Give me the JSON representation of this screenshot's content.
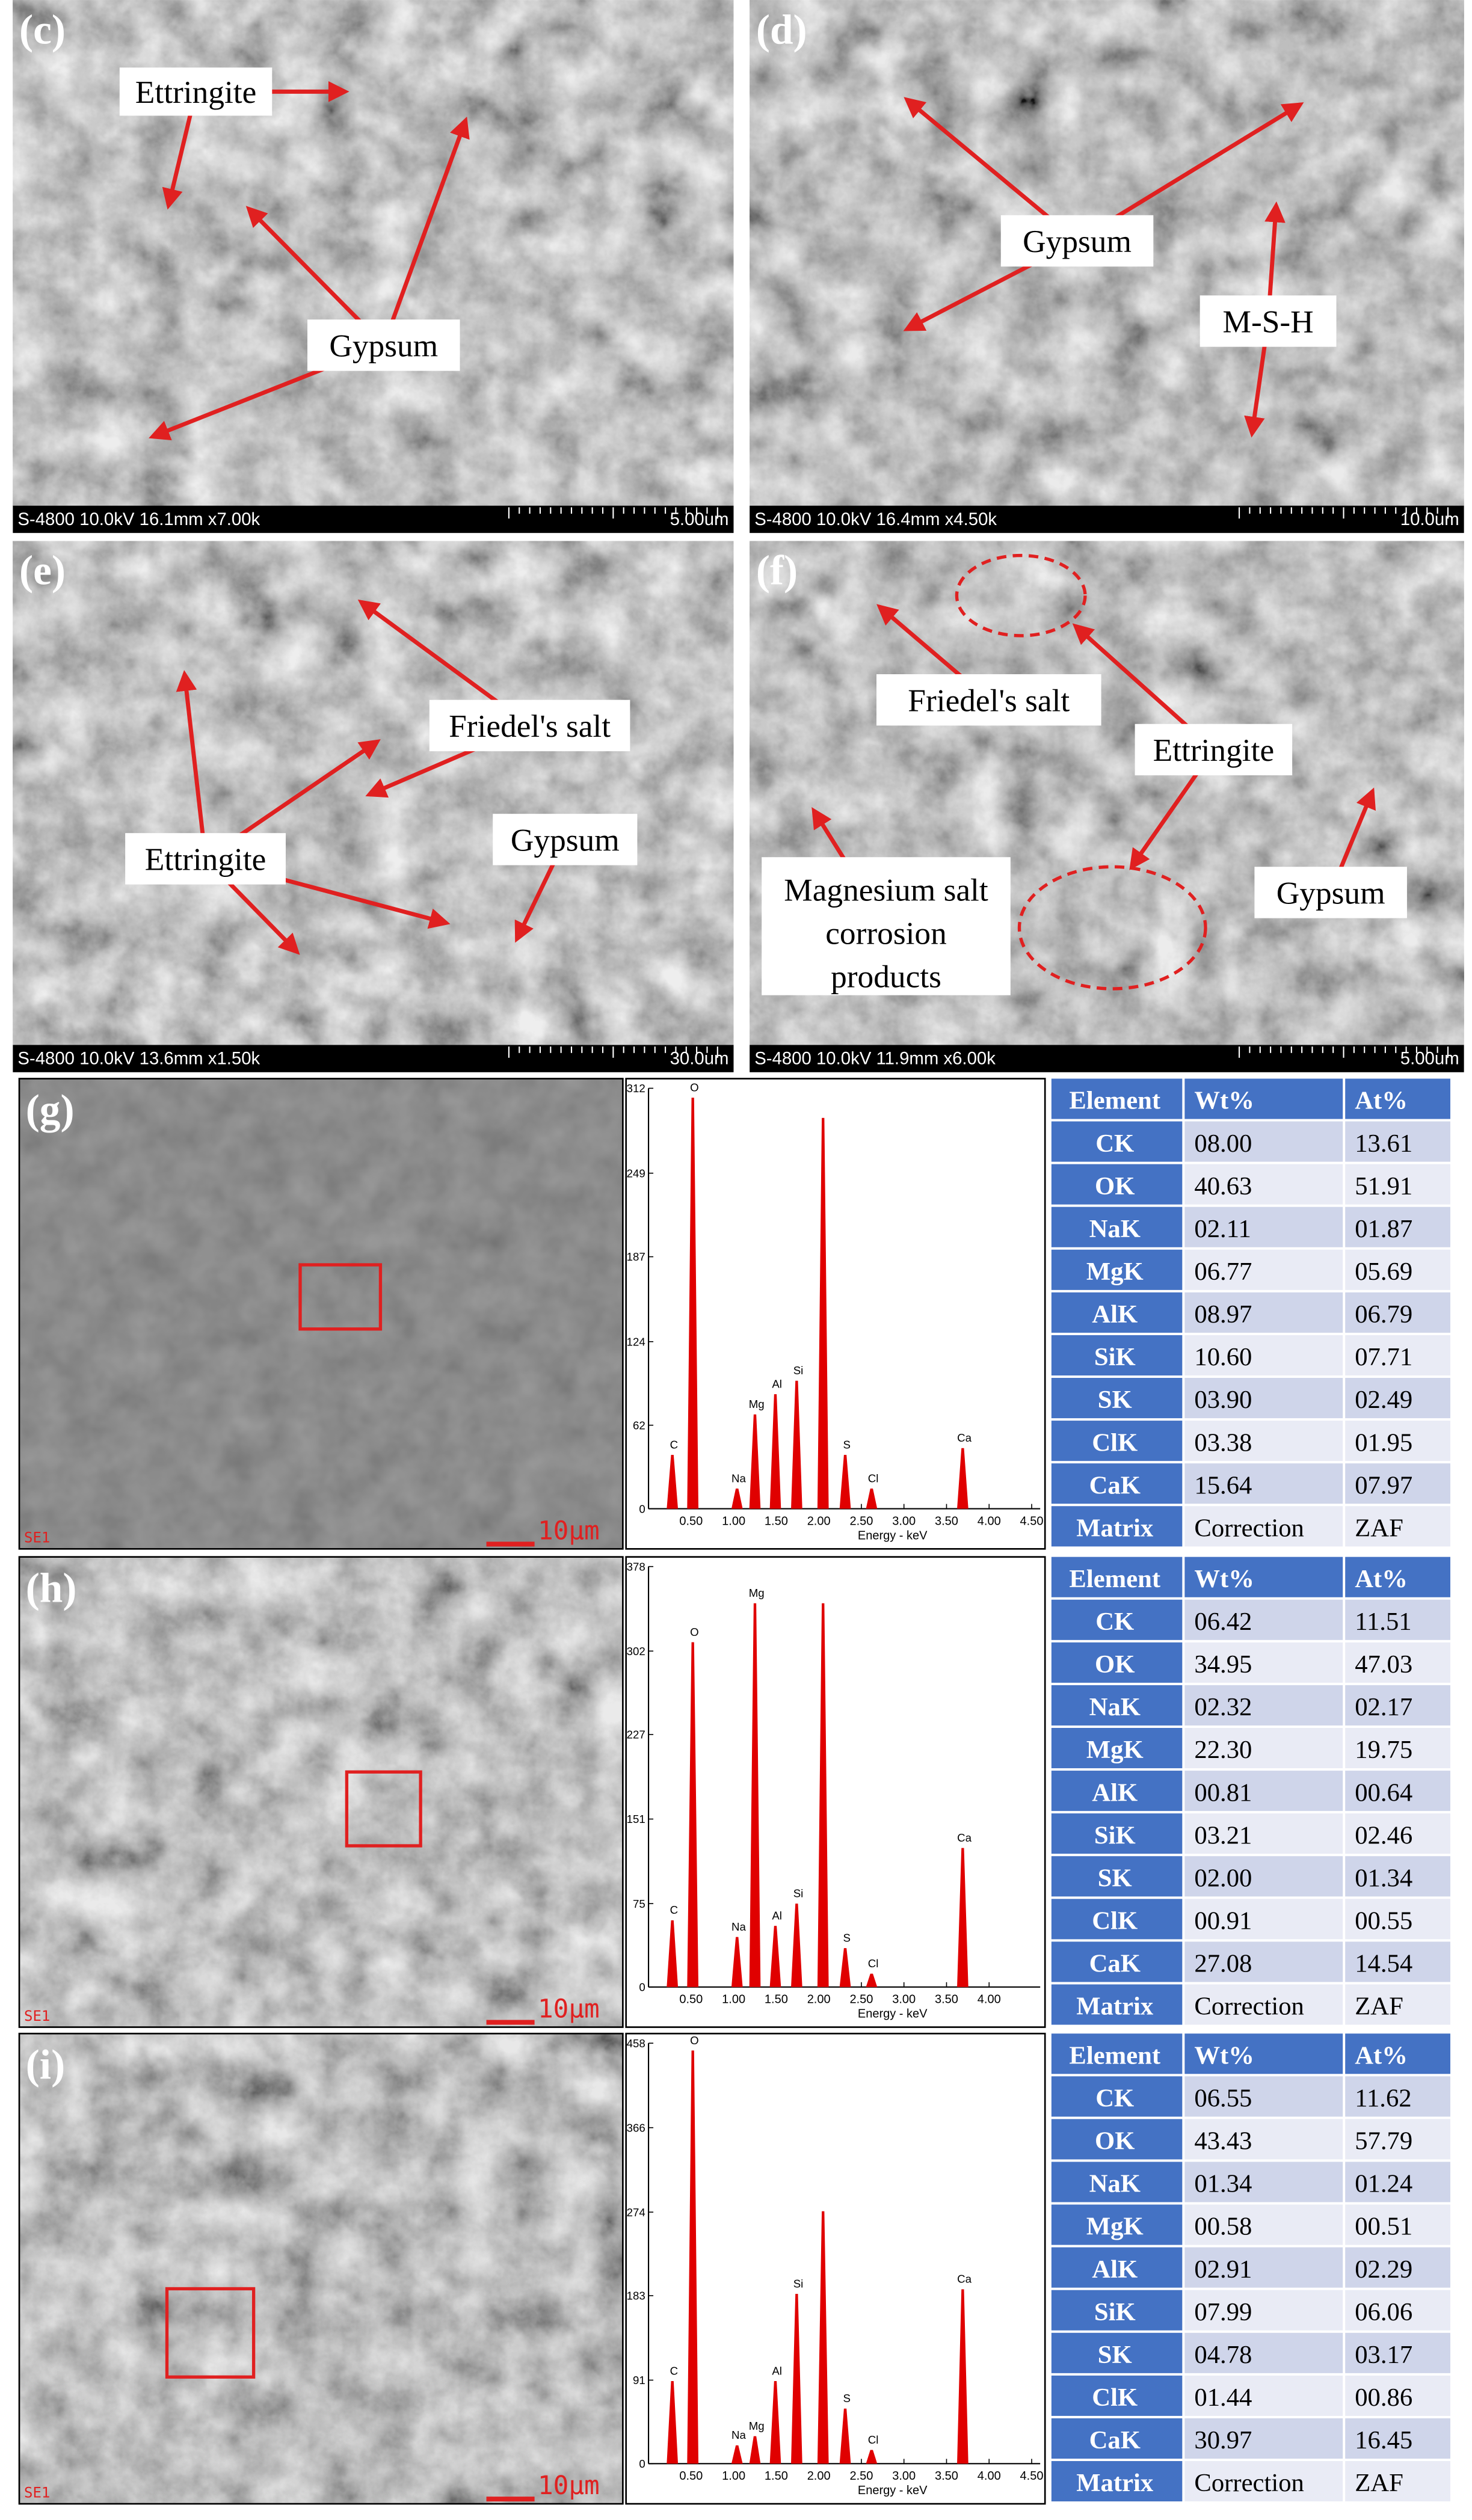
{
  "sem_panels": [
    {
      "label": "(c)",
      "info": "S-4800 10.0kV 16.1mm x7.00k",
      "scale": "5.00um",
      "annotations": [
        {
          "text": "Ettringite"
        },
        {
          "text": "Gypsum"
        }
      ]
    },
    {
      "label": "(d)",
      "info": "S-4800 10.0kV 16.4mm x4.50k",
      "scale": "10.0um",
      "annotations": [
        {
          "text": "Gypsum"
        },
        {
          "text": "M-S-H"
        }
      ]
    },
    {
      "label": "(e)",
      "info": "S-4800 10.0kV 13.6mm x1.50k",
      "scale": "30.0um",
      "annotations": [
        {
          "text": "Friedel's salt"
        },
        {
          "text": "Ettringite"
        },
        {
          "text": "Gypsum"
        }
      ]
    },
    {
      "label": "(f)",
      "info": "S-4800 10.0kV 11.9mm x6.00k",
      "scale": "5.00um",
      "annotations": [
        {
          "text": "Friedel's salt"
        },
        {
          "text": "Ettringite"
        },
        {
          "text": "Gypsum"
        },
        {
          "lines": [
            "Magnesium salt",
            "corrosion",
            "products"
          ]
        }
      ]
    }
  ],
  "eds_panels": [
    {
      "label": "(g)",
      "detector": "SE1",
      "scale": "10μm",
      "spectrum": {
        "type": "bar",
        "xlabel": "Energy - keV",
        "xlim": [
          0,
          4.6
        ],
        "ylim": [
          0,
          312
        ],
        "yticks": [
          0,
          62,
          124,
          187,
          249,
          312
        ],
        "xticks": [
          {
            "value": 0.5,
            "label": "0.50"
          },
          {
            "value": 1,
            "label": "1.00"
          },
          {
            "value": 1.5,
            "label": "1.50"
          },
          {
            "value": 2,
            "label": "2.00"
          },
          {
            "value": 2.5,
            "label": "2.50"
          },
          {
            "value": 3,
            "label": "3.00"
          },
          {
            "value": 3.5,
            "label": "3.50"
          },
          {
            "value": 4,
            "label": "4.00"
          },
          {
            "value": 4.5,
            "label": "4.50"
          }
        ],
        "color": "#e00000",
        "peaks": [
          {
            "element": "C",
            "energy": 0.28,
            "counts": 40
          },
          {
            "element": "O",
            "energy": 0.52,
            "counts": 305
          },
          {
            "element": "Na",
            "energy": 1.04,
            "counts": 15
          },
          {
            "element": "Mg",
            "energy": 1.25,
            "counts": 70
          },
          {
            "element": "Al",
            "energy": 1.49,
            "counts": 85
          },
          {
            "element": "Si",
            "energy": 1.74,
            "counts": 95
          },
          {
            "element": null,
            "energy": 2.05,
            "counts": 290
          },
          {
            "element": "S",
            "energy": 2.31,
            "counts": 40
          },
          {
            "element": "Cl",
            "energy": 2.62,
            "counts": 15
          },
          {
            "element": "Ca",
            "energy": 3.69,
            "counts": 45
          }
        ]
      },
      "table": {
        "header": [
          "Element",
          "Wt%",
          "At%"
        ],
        "rows": [
          [
            "CK",
            "08.00",
            "13.61"
          ],
          [
            "OK",
            "40.63",
            "51.91"
          ],
          [
            "NaK",
            "02.11",
            "01.87"
          ],
          [
            "MgK",
            "06.77",
            "05.69"
          ],
          [
            "AlK",
            "08.97",
            "06.79"
          ],
          [
            "SiK",
            "10.60",
            "07.71"
          ],
          [
            "SK",
            "03.90",
            "02.49"
          ],
          [
            "ClK",
            "03.38",
            "01.95"
          ],
          [
            "CaK",
            "15.64",
            "07.97"
          ],
          [
            "Matrix",
            "Correction",
            "ZAF"
          ]
        ]
      }
    },
    {
      "label": "(h)",
      "detector": "SE1",
      "scale": "10μm",
      "spectrum": {
        "type": "bar",
        "xlabel": "Energy - keV",
        "xlim": [
          0,
          4.6
        ],
        "ylim": [
          0,
          378
        ],
        "yticks": [
          0,
          75,
          151,
          227,
          302,
          378
        ],
        "xticks": [
          {
            "value": 0.5,
            "label": "0.50"
          },
          {
            "value": 1,
            "label": "1.00"
          },
          {
            "value": 1.5,
            "label": "1.50"
          },
          {
            "value": 2,
            "label": "2.00"
          },
          {
            "value": 2.5,
            "label": "2.50"
          },
          {
            "value": 3,
            "label": "3.00"
          },
          {
            "value": 3.5,
            "label": "3.50"
          },
          {
            "value": 4,
            "label": "4.00"
          }
        ],
        "color": "#e00000",
        "peaks": [
          {
            "element": "C",
            "energy": 0.28,
            "counts": 60
          },
          {
            "element": "O",
            "energy": 0.52,
            "counts": 310
          },
          {
            "element": "Na",
            "energy": 1.04,
            "counts": 45
          },
          {
            "element": "Mg",
            "energy": 1.25,
            "counts": 345
          },
          {
            "element": "Al",
            "energy": 1.49,
            "counts": 55
          },
          {
            "element": "Si",
            "energy": 1.74,
            "counts": 75
          },
          {
            "element": null,
            "energy": 2.05,
            "counts": 345
          },
          {
            "element": "S",
            "energy": 2.31,
            "counts": 35
          },
          {
            "element": "Cl",
            "energy": 2.62,
            "counts": 12
          },
          {
            "element": "Ca",
            "energy": 3.69,
            "counts": 125
          }
        ]
      },
      "table": {
        "header": [
          "Element",
          "Wt%",
          "At%"
        ],
        "rows": [
          [
            "CK",
            "06.42",
            "11.51"
          ],
          [
            "OK",
            "34.95",
            "47.03"
          ],
          [
            "NaK",
            "02.32",
            "02.17"
          ],
          [
            "MgK",
            "22.30",
            "19.75"
          ],
          [
            "AlK",
            "00.81",
            "00.64"
          ],
          [
            "SiK",
            "03.21",
            "02.46"
          ],
          [
            "SK",
            "02.00",
            "01.34"
          ],
          [
            "ClK",
            "00.91",
            "00.55"
          ],
          [
            "CaK",
            "27.08",
            "14.54"
          ],
          [
            "Matrix",
            "Correction",
            "ZAF"
          ]
        ]
      }
    },
    {
      "label": "(i)",
      "detector": "SE1",
      "scale": "10μm",
      "spectrum": {
        "type": "bar",
        "xlabel": "Energy - keV",
        "xlim": [
          0,
          4.6
        ],
        "ylim": [
          0,
          458
        ],
        "yticks": [
          0,
          91,
          183,
          274,
          366,
          458
        ],
        "xticks": [
          {
            "value": 0.5,
            "label": "0.50"
          },
          {
            "value": 1,
            "label": "1.00"
          },
          {
            "value": 1.5,
            "label": "1.50"
          },
          {
            "value": 2,
            "label": "2.00"
          },
          {
            "value": 2.5,
            "label": "2.50"
          },
          {
            "value": 3,
            "label": "3.00"
          },
          {
            "value": 3.5,
            "label": "3.50"
          },
          {
            "value": 4,
            "label": "4.00"
          },
          {
            "value": 4.5,
            "label": "4.50"
          }
        ],
        "color": "#e00000",
        "peaks": [
          {
            "element": "C",
            "energy": 0.28,
            "counts": 90
          },
          {
            "element": "O",
            "energy": 0.52,
            "counts": 450
          },
          {
            "element": "Na",
            "energy": 1.04,
            "counts": 20
          },
          {
            "element": "Mg",
            "energy": 1.25,
            "counts": 30
          },
          {
            "element": "Al",
            "energy": 1.49,
            "counts": 90
          },
          {
            "element": "Si",
            "energy": 1.74,
            "counts": 185
          },
          {
            "element": null,
            "energy": 2.05,
            "counts": 275
          },
          {
            "element": "S",
            "energy": 2.31,
            "counts": 60
          },
          {
            "element": "Cl",
            "energy": 2.62,
            "counts": 15
          },
          {
            "element": "Ca",
            "energy": 3.69,
            "counts": 190
          }
        ]
      },
      "table": {
        "header": [
          "Element",
          "Wt%",
          "At%"
        ],
        "rows": [
          [
            "CK",
            "06.55",
            "11.62"
          ],
          [
            "OK",
            "43.43",
            "57.79"
          ],
          [
            "NaK",
            "01.34",
            "01.24"
          ],
          [
            "MgK",
            "00.58",
            "00.51"
          ],
          [
            "AlK",
            "02.91",
            "02.29"
          ],
          [
            "SiK",
            "07.99",
            "06.06"
          ],
          [
            "SK",
            "04.78",
            "03.17"
          ],
          [
            "ClK",
            "01.44",
            "00.86"
          ],
          [
            "CaK",
            "30.97",
            "16.45"
          ],
          [
            "Matrix",
            "Correction",
            "ZAF"
          ]
        ]
      }
    }
  ]
}
